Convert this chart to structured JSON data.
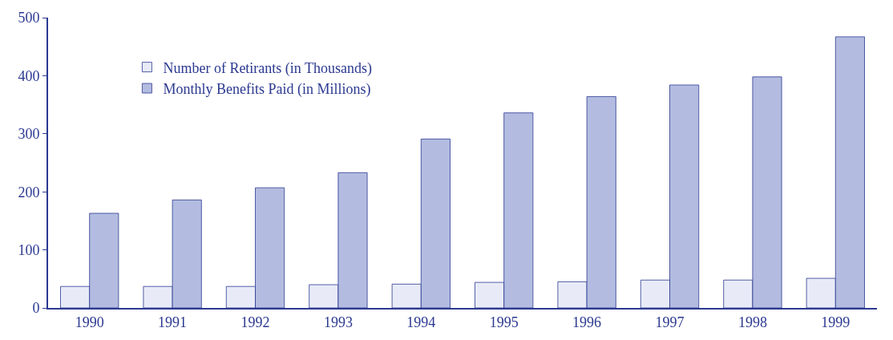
{
  "chart_data": {
    "type": "bar",
    "categories": [
      "1990",
      "1991",
      "1992",
      "1993",
      "1994",
      "1995",
      "1996",
      "1997",
      "1998",
      "1999"
    ],
    "series": [
      {
        "name": "Number of Retirants (in Thousands)",
        "color": "#e8ebf7",
        "values": [
          37,
          37,
          37,
          40,
          41,
          44,
          45,
          48,
          48,
          51
        ]
      },
      {
        "name": "Monthly Benefits Paid (in Millions)",
        "color": "#b3bce0",
        "values": [
          163,
          186,
          207,
          233,
          291,
          336,
          364,
          384,
          398,
          467
        ]
      }
    ],
    "ylim": [
      0,
      500
    ],
    "yticks": [
      0,
      100,
      200,
      300,
      400,
      500
    ],
    "grid": false,
    "legend": "top left"
  }
}
